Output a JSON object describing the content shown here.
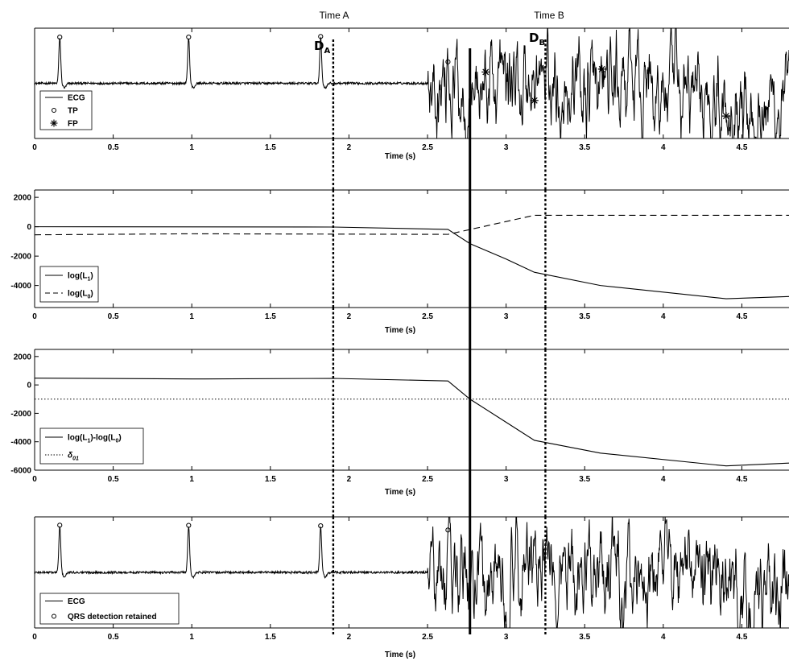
{
  "figure": {
    "time_a_label": "Time A",
    "time_b_label": "Time B",
    "da_label": "D",
    "da_sub": "A",
    "db_label": "D",
    "db_sub": "B"
  },
  "colors": {
    "line": "#000000",
    "background": "#ffffff"
  },
  "chart_data": [
    {
      "type": "line",
      "panel": "ecg_top",
      "xlabel": "Time (s)",
      "ylabel": "",
      "xlim": [
        0,
        4.8
      ],
      "ylim": [
        -1.5,
        1.5
      ],
      "xticks": [
        "0",
        "0.5",
        "1",
        "1.5",
        "2",
        "2.5",
        "3",
        "3.5",
        "4",
        "4.5"
      ],
      "yticks": [],
      "grid": false,
      "legend_position": "lower-left",
      "series": [
        {
          "name": "ECG",
          "style": "solid"
        },
        {
          "name": "TP",
          "style": "circle-marker",
          "x": [
            0.16,
            0.98,
            1.82,
            2.63
          ]
        },
        {
          "name": "FP",
          "style": "star-marker",
          "x": [
            2.87,
            3.18,
            3.61,
            4.4
          ]
        }
      ],
      "vertical_lines": [
        {
          "x": 1.9,
          "style": "dotted"
        },
        {
          "x": 2.77,
          "style": "solid"
        },
        {
          "x": 3.25,
          "style": "dotted"
        }
      ]
    },
    {
      "type": "line",
      "panel": "log_likelihoods",
      "xlabel": "Time (s)",
      "ylabel": "",
      "xlim": [
        0,
        4.8
      ],
      "ylim": [
        -5500,
        2500
      ],
      "xticks": [
        "0",
        "0.5",
        "1",
        "1.5",
        "2",
        "2.5",
        "3",
        "3.5",
        "4",
        "4.5"
      ],
      "yticks": [
        "2000",
        "0",
        "-2000",
        "-4000"
      ],
      "grid": false,
      "legend_position": "lower-left",
      "series": [
        {
          "name": "log(L1)",
          "label_main": "log(L",
          "label_sub": "1",
          "label_end": ")",
          "style": "solid",
          "x": [
            0,
            1.9,
            2.63,
            2.77,
            3.0,
            3.18,
            3.6,
            4.4,
            4.8
          ],
          "values": [
            0,
            -20,
            -180,
            -1150,
            -2200,
            -3100,
            -4000,
            -4900,
            -4750
          ]
        },
        {
          "name": "log(L0)",
          "label_main": "log(L",
          "label_sub": "0",
          "label_end": ")",
          "style": "dashed",
          "x": [
            0,
            1.0,
            2.63,
            3.18,
            4.8
          ],
          "values": [
            -550,
            -480,
            -520,
            780,
            780
          ]
        }
      ],
      "vertical_lines": [
        {
          "x": 1.9,
          "style": "dotted"
        },
        {
          "x": 2.77,
          "style": "solid"
        },
        {
          "x": 3.25,
          "style": "dotted"
        }
      ]
    },
    {
      "type": "line",
      "panel": "log_likelihood_ratio",
      "xlabel": "Time (s)",
      "ylabel": "",
      "xlim": [
        0,
        4.8
      ],
      "ylim": [
        -6000,
        2500
      ],
      "xticks": [
        "0",
        "0.5",
        "1",
        "1.5",
        "2",
        "2.5",
        "3",
        "3.5",
        "4",
        "4.5"
      ],
      "yticks": [
        "2000",
        "0",
        "-2000",
        "-4000",
        "-6000"
      ],
      "grid": false,
      "legend_position": "lower-left",
      "series": [
        {
          "name": "log(L1)-log(L0)",
          "label_main": "log(L",
          "label_sub": "1",
          "label_mid": ")-log(L",
          "label_sub2": "0",
          "label_end": ")",
          "style": "solid",
          "x": [
            0,
            1.0,
            1.9,
            2.63,
            2.77,
            3.18,
            3.6,
            4.4,
            4.8
          ],
          "values": [
            480,
            420,
            460,
            280,
            -1000,
            -3900,
            -4800,
            -5700,
            -5500
          ]
        },
        {
          "name": "δ01",
          "label_main": "δ",
          "label_sub": "01",
          "style": "dotted",
          "x": [
            0,
            4.8
          ],
          "values": [
            -1000,
            -1000
          ]
        }
      ],
      "vertical_lines": [
        {
          "x": 1.9,
          "style": "dotted"
        },
        {
          "x": 2.77,
          "style": "solid"
        },
        {
          "x": 3.25,
          "style": "dotted"
        }
      ]
    },
    {
      "type": "line",
      "panel": "ecg_bottom",
      "xlabel": "Time (s)",
      "ylabel": "",
      "xlim": [
        0,
        4.8
      ],
      "ylim": [
        -1.5,
        1.5
      ],
      "xticks": [
        "0",
        "0.5",
        "1",
        "1.5",
        "2",
        "2.5",
        "3",
        "3.5",
        "4",
        "4.5"
      ],
      "yticks": [],
      "grid": false,
      "legend_position": "lower-left",
      "series": [
        {
          "name": "ECG",
          "style": "solid"
        },
        {
          "name": "QRS detection retained",
          "style": "circle-marker",
          "x": [
            0.16,
            0.98,
            1.82,
            2.63
          ]
        }
      ],
      "vertical_lines": [
        {
          "x": 1.9,
          "style": "dotted"
        },
        {
          "x": 2.77,
          "style": "solid"
        },
        {
          "x": 3.25,
          "style": "dotted"
        }
      ]
    }
  ]
}
